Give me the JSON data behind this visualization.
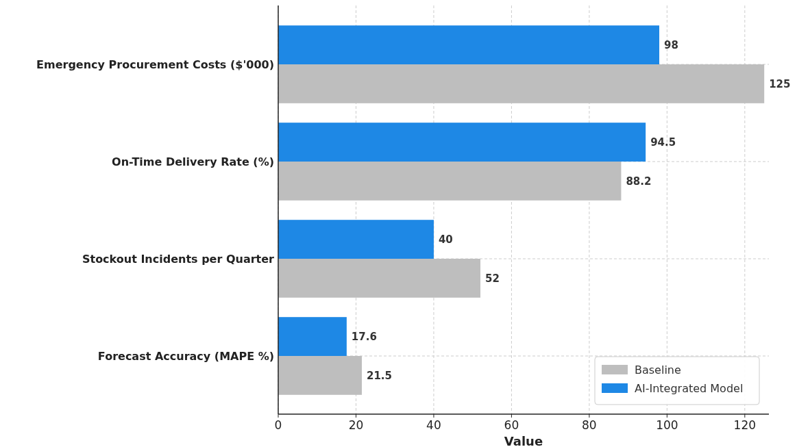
{
  "chart_data": {
    "type": "bar",
    "orientation": "horizontal",
    "xlabel": "Value",
    "categories": [
      "Emergency Procurement Costs ($'000)",
      "On-Time Delivery Rate (%)",
      "Stockout Incidents per Quarter",
      "Forecast Accuracy (MAPE %)"
    ],
    "series": [
      {
        "name": "Baseline",
        "color": "#bebebe",
        "values": [
          125,
          88.2,
          52,
          21.5
        ]
      },
      {
        "name": "AI-Integrated Model",
        "color": "#1e88e5",
        "values": [
          98,
          94.5,
          40,
          17.6
        ]
      }
    ],
    "xlim": [
      0,
      126.2
    ],
    "xticks": [
      0,
      20,
      40,
      60,
      80,
      100,
      120
    ],
    "grid": true,
    "legend": "bottom right",
    "data_labels": true
  }
}
